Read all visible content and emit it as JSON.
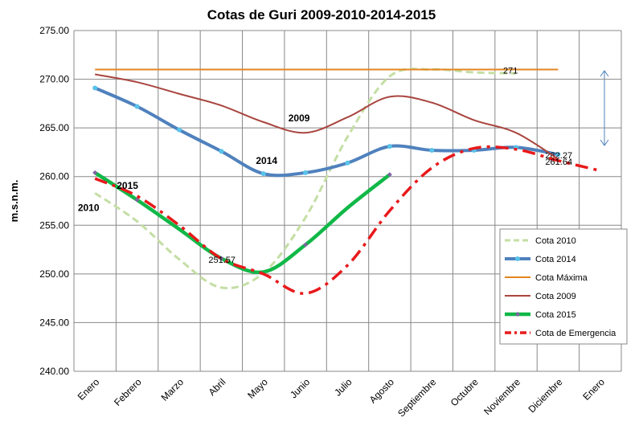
{
  "chart_data": {
    "type": "line",
    "title": "Cotas de Guri 2009-2010-2014-2015",
    "y_label": "m.s.n.m.",
    "categories": [
      "Enero",
      "Febrero",
      "Marzo",
      "Abril",
      "Mayo",
      "Junio",
      "Julio",
      "Agosto",
      "Septiembre",
      "Octubre",
      "Noviembre",
      "Diciembre",
      "Enero"
    ],
    "ylim": [
      240,
      275
    ],
    "yticks": [
      {
        "value": 240,
        "label": "240.00"
      },
      {
        "value": 245,
        "label": "245.00"
      },
      {
        "value": 250,
        "label": "250.00"
      },
      {
        "value": 255,
        "label": "255.00"
      },
      {
        "value": 260,
        "label": "260.00"
      },
      {
        "value": 265,
        "label": "265.00"
      },
      {
        "value": 270,
        "label": "270.00"
      },
      {
        "value": 275,
        "label": "275.00"
      }
    ],
    "grid": true,
    "legend": "lower right",
    "annotations": [
      {
        "text": "2009",
        "series": 3,
        "index": 5
      },
      {
        "text": "2014",
        "series": 1,
        "index": 4
      },
      {
        "text": "2015",
        "series": 4,
        "index": 1
      },
      {
        "text": "2010",
        "series": 0,
        "index": 0
      }
    ],
    "series": [
      {
        "name": "Cota 2010",
        "color": "#c4dea4",
        "dash": "dashed",
        "smooth": true,
        "values": [
          258.3,
          255.4,
          251.5,
          248.6,
          250.1,
          255.8,
          264.1,
          270.3,
          271,
          270.7,
          270.6,
          null,
          null
        ]
      },
      {
        "name": "Cota 2014",
        "color": "#4f81bd",
        "marker": "circle",
        "smooth": true,
        "values": [
          269.1,
          267.2,
          264.8,
          262.6,
          260.3,
          260.4,
          261.4,
          263.1,
          262.7,
          262.7,
          263.0,
          262.27,
          null
        ],
        "value_labels": [
          null,
          null,
          null,
          null,
          null,
          null,
          null,
          null,
          null,
          null,
          null,
          "262.27",
          null
        ]
      },
      {
        "name": "Cota Máxima",
        "color": "#e3861f",
        "smooth": false,
        "values": [
          271,
          271,
          271,
          271,
          271,
          271,
          271,
          271,
          271,
          271,
          271,
          271,
          null
        ],
        "value_labels": [
          null,
          null,
          null,
          null,
          null,
          null,
          null,
          null,
          null,
          null,
          "271",
          null,
          null
        ]
      },
      {
        "name": "Cota 2009",
        "color": "#a9453f",
        "smooth": true,
        "values": [
          270.5,
          269.7,
          268.5,
          267.3,
          265.6,
          264.5,
          266.1,
          268.2,
          267.6,
          265.8,
          264.5,
          261.8,
          null
        ]
      },
      {
        "name": "Cota 2015",
        "color": "#10b847",
        "marker": "diamond",
        "smooth": true,
        "values": [
          260.4,
          257.6,
          254.6,
          251.6,
          250.2,
          253.0,
          256.8,
          260.2,
          null,
          null,
          null,
          null,
          null
        ]
      },
      {
        "name": "Cota de Emergencia",
        "color": "#e8191b",
        "dash": "dashdot",
        "smooth": true,
        "values": [
          259.8,
          258.0,
          255.0,
          251.57,
          250.0,
          248.0,
          250.9,
          256.5,
          260.9,
          262.9,
          262.8,
          261.64,
          260.6
        ],
        "value_labels": [
          null,
          null,
          null,
          "251.57",
          null,
          null,
          null,
          null,
          null,
          null,
          null,
          "261.64",
          null
        ]
      }
    ]
  }
}
